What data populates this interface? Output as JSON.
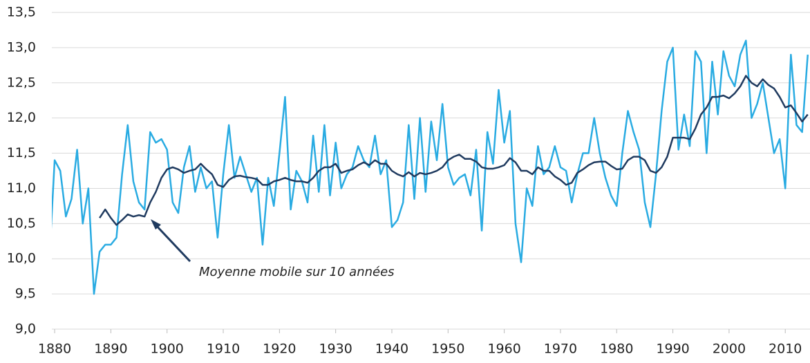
{
  "chart_data": {
    "type": "line",
    "annotation": "Moyenne mobile sur 10 années",
    "x": [
      1879,
      1880,
      1881,
      1882,
      1883,
      1884,
      1885,
      1886,
      1887,
      1888,
      1889,
      1890,
      1891,
      1892,
      1893,
      1894,
      1895,
      1896,
      1897,
      1898,
      1899,
      1900,
      1901,
      1902,
      1903,
      1904,
      1905,
      1906,
      1907,
      1908,
      1909,
      1910,
      1911,
      1912,
      1913,
      1914,
      1915,
      1916,
      1917,
      1918,
      1919,
      1920,
      1921,
      1922,
      1923,
      1924,
      1925,
      1926,
      1927,
      1928,
      1929,
      1930,
      1931,
      1932,
      1933,
      1934,
      1935,
      1936,
      1937,
      1938,
      1939,
      1940,
      1941,
      1942,
      1943,
      1944,
      1945,
      1946,
      1947,
      1948,
      1949,
      1950,
      1951,
      1952,
      1953,
      1954,
      1955,
      1956,
      1957,
      1958,
      1959,
      1960,
      1961,
      1962,
      1963,
      1964,
      1965,
      1966,
      1967,
      1968,
      1969,
      1970,
      1971,
      1972,
      1973,
      1974,
      1975,
      1976,
      1977,
      1978,
      1979,
      1980,
      1981,
      1982,
      1983,
      1984,
      1985,
      1986,
      1987,
      1988,
      1989,
      1990,
      1991,
      1992,
      1993,
      1994,
      1995,
      1996,
      1997,
      1998,
      1999,
      2000,
      2001,
      2002,
      2003,
      2004,
      2005,
      2006,
      2007,
      2008,
      2009,
      2010,
      2011,
      2012,
      2013,
      2014
    ],
    "series": [
      {
        "color": "#29abe2",
        "values": [
          9.9,
          11.4,
          11.25,
          10.6,
          10.85,
          11.55,
          10.5,
          11.0,
          9.5,
          10.1,
          10.2,
          10.2,
          10.3,
          11.2,
          11.9,
          11.1,
          10.8,
          10.7,
          11.8,
          11.65,
          11.7,
          11.55,
          10.8,
          10.65,
          11.3,
          11.6,
          10.95,
          11.3,
          11.0,
          11.1,
          10.3,
          11.2,
          11.9,
          11.15,
          11.45,
          11.2,
          10.95,
          11.15,
          10.2,
          11.15,
          10.75,
          11.5,
          12.3,
          10.7,
          11.25,
          11.1,
          10.8,
          11.75,
          10.95,
          11.9,
          10.9,
          11.65,
          11.0,
          11.2,
          11.3,
          11.6,
          11.4,
          11.3,
          11.75,
          11.2,
          11.4,
          10.45,
          10.55,
          10.8,
          11.9,
          10.85,
          12.0,
          10.95,
          11.95,
          11.4,
          12.2,
          11.3,
          11.05,
          11.15,
          11.2,
          10.9,
          11.55,
          10.4,
          11.8,
          11.35,
          12.4,
          11.65,
          12.1,
          10.5,
          9.95,
          11.0,
          10.75,
          11.6,
          11.2,
          11.3,
          11.6,
          11.3,
          11.25,
          10.8,
          11.2,
          11.5,
          11.5,
          12.0,
          11.5,
          11.15,
          10.9,
          10.75,
          11.5,
          12.1,
          11.8,
          11.55,
          10.8,
          10.45,
          11.2,
          12.1,
          12.8,
          13.0,
          11.55,
          12.05,
          11.6,
          12.95,
          12.8,
          11.5,
          12.8,
          12.05,
          12.95,
          12.6,
          12.45,
          12.9,
          13.1,
          12.0,
          12.2,
          12.5,
          12.0,
          11.5,
          11.7,
          11.0,
          12.9,
          11.9,
          11.8,
          12.9
        ]
      },
      {
        "color": "#1f3a5f",
        "values": [
          null,
          null,
          null,
          null,
          null,
          null,
          null,
          null,
          null,
          10.58,
          10.7,
          10.58,
          10.48,
          10.55,
          10.63,
          10.6,
          10.62,
          10.6,
          10.8,
          10.95,
          11.15,
          11.27,
          11.3,
          11.27,
          11.22,
          11.25,
          11.27,
          11.35,
          11.27,
          11.2,
          11.05,
          11.02,
          11.12,
          11.17,
          11.18,
          11.16,
          11.15,
          11.13,
          11.05,
          11.05,
          11.1,
          11.12,
          11.15,
          11.12,
          11.1,
          11.1,
          11.08,
          11.15,
          11.25,
          11.3,
          11.3,
          11.35,
          11.22,
          11.25,
          11.27,
          11.33,
          11.37,
          11.33,
          11.4,
          11.35,
          11.35,
          11.25,
          11.2,
          11.17,
          11.23,
          11.17,
          11.22,
          11.2,
          11.22,
          11.25,
          11.3,
          11.4,
          11.45,
          11.48,
          11.42,
          11.42,
          11.38,
          11.3,
          11.28,
          11.28,
          11.3,
          11.33,
          11.43,
          11.37,
          11.25,
          11.25,
          11.2,
          11.3,
          11.25,
          11.25,
          11.17,
          11.12,
          11.05,
          11.08,
          11.22,
          11.27,
          11.33,
          11.37,
          11.38,
          11.38,
          11.32,
          11.27,
          11.28,
          11.4,
          11.45,
          11.45,
          11.4,
          11.25,
          11.22,
          11.3,
          11.45,
          11.72,
          11.72,
          11.72,
          11.7,
          11.85,
          12.05,
          12.15,
          12.3,
          12.3,
          12.32,
          12.28,
          12.35,
          12.45,
          12.6,
          12.5,
          12.45,
          12.55,
          12.47,
          12.42,
          12.3,
          12.15,
          12.18,
          12.07,
          11.95,
          12.05
        ]
      }
    ],
    "xlim": [
      1879.5,
      2014.4
    ],
    "xticks": [
      1880,
      1890,
      1900,
      1910,
      1920,
      1930,
      1940,
      1950,
      1960,
      1970,
      1980,
      1990,
      2000,
      2010
    ],
    "ylim": [
      9.0,
      13.5
    ],
    "yticks": [
      {
        "value": 9.0,
        "label": "9,0"
      },
      {
        "value": 9.5,
        "label": "9,5"
      },
      {
        "value": 10.0,
        "label": "10,0"
      },
      {
        "value": 10.5,
        "label": "10,5"
      },
      {
        "value": 11.0,
        "label": "11,0"
      },
      {
        "value": 11.5,
        "label": "11,5"
      },
      {
        "value": 12.0,
        "label": "12,0"
      },
      {
        "value": 12.5,
        "label": "12,5"
      },
      {
        "value": 13.0,
        "label": "13,0"
      },
      {
        "value": 13.5,
        "label": "13,5"
      }
    ],
    "grid": true
  }
}
